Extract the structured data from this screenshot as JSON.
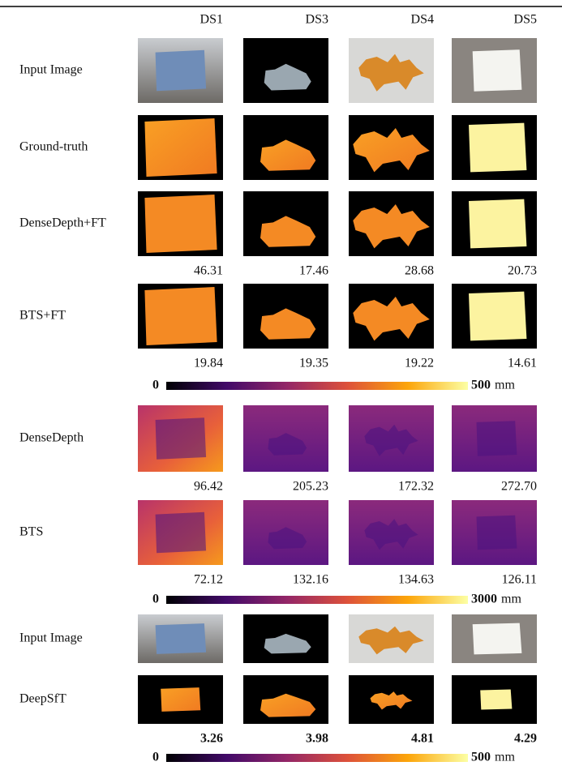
{
  "columns": [
    "DS1",
    "DS3",
    "DS4",
    "DS5"
  ],
  "sections": [
    {
      "rows": [
        {
          "label": "Input Image"
        },
        {
          "label": "Ground-truth"
        },
        {
          "label": "DenseDepth+FT",
          "scores": [
            "46.31",
            "17.46",
            "28.68",
            "20.73"
          ]
        },
        {
          "label": "BTS+FT",
          "scores": [
            "19.84",
            "19.35",
            "19.22",
            "14.61"
          ]
        }
      ],
      "colorbar": {
        "min": "0",
        "max": "500",
        "unit": "mm"
      }
    },
    {
      "rows": [
        {
          "label": "DenseDepth",
          "scores": [
            "96.42",
            "205.23",
            "172.32",
            "272.70"
          ]
        },
        {
          "label": "BTS",
          "scores": [
            "72.12",
            "132.16",
            "134.63",
            "126.11"
          ]
        }
      ],
      "colorbar": {
        "min": "0",
        "max": "3000",
        "unit": "mm"
      }
    },
    {
      "rows": [
        {
          "label": "Input Image"
        },
        {
          "label": "DeepSfT",
          "scores": [
            "3.26",
            "3.98",
            "4.81",
            "4.29"
          ]
        }
      ],
      "colorbar": {
        "min": "0",
        "max": "500",
        "unit": "mm"
      }
    }
  ]
}
